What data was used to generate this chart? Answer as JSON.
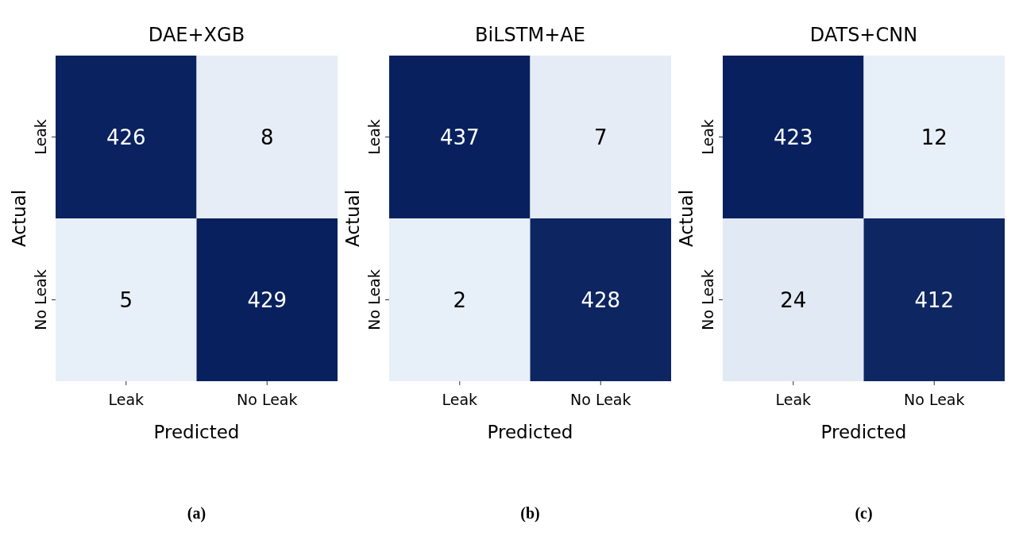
{
  "chart_data": [
    {
      "type": "heatmap",
      "title": "DAE+XGB",
      "xlabel": "Predicted",
      "ylabel": "Actual",
      "categories": [
        "Leak",
        "No Leak"
      ],
      "y_categories": [
        "Leak",
        "No Leak"
      ],
      "cells": [
        [
          426,
          8
        ],
        [
          5,
          429
        ]
      ],
      "data_labels": true,
      "annotations": [
        "(a)"
      ]
    },
    {
      "type": "heatmap",
      "title": "BiLSTM+AE",
      "xlabel": "Predicted",
      "ylabel": "Actual",
      "categories": [
        "Leak",
        "No Leak"
      ],
      "y_categories": [
        "Leak",
        "No Leak"
      ],
      "cells": [
        [
          437,
          7
        ],
        [
          2,
          428
        ]
      ],
      "data_labels": true,
      "annotations": [
        "(b)"
      ]
    },
    {
      "type": "heatmap",
      "title": "DATS+CNN",
      "xlabel": "Predicted",
      "ylabel": "Actual",
      "categories": [
        "Leak",
        "No Leak"
      ],
      "y_categories": [
        "Leak",
        "No Leak"
      ],
      "cells": [
        [
          423,
          12
        ],
        [
          24,
          412
        ]
      ],
      "data_labels": true,
      "annotations": [
        "(c)"
      ]
    }
  ]
}
